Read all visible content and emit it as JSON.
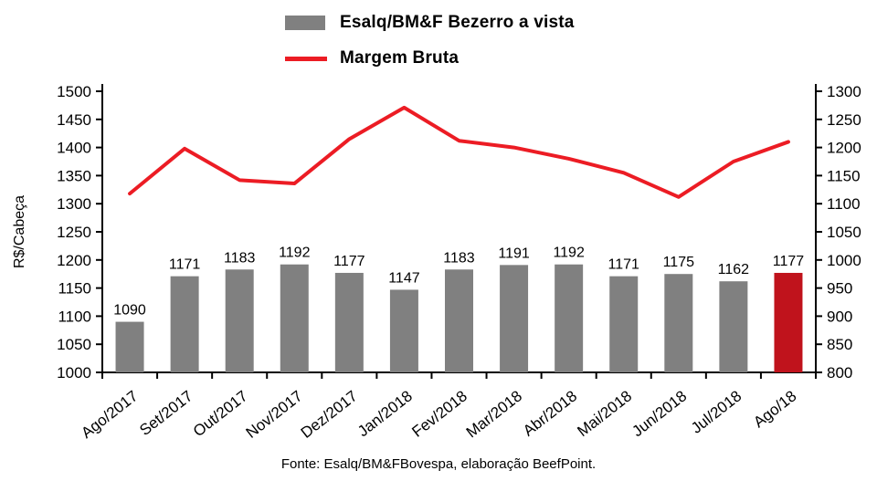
{
  "chart_data": {
    "type": "bar",
    "subtype": "combo-bar-line",
    "title": "",
    "categories": [
      "Ago/2017",
      "Set/2017",
      "Out/2017",
      "Nov/2017",
      "Dez/2017",
      "Jan/2018",
      "Fev/2018",
      "Mar/2018",
      "Abr/2018",
      "Mai/2018",
      "Jun/2018",
      "Jul/2018",
      "Ago/18"
    ],
    "series": [
      {
        "name": "Esalq/BM&F Bezerro a vista",
        "type": "bar",
        "axis": "left",
        "values": [
          1090,
          1171,
          1183,
          1192,
          1177,
          1147,
          1183,
          1191,
          1192,
          1171,
          1175,
          1162,
          1177
        ],
        "color": "#808080",
        "highlight_last_color": "#c0131c"
      },
      {
        "name": "Margem Bruta",
        "type": "line",
        "axis": "right",
        "values": [
          1118,
          1198,
          1142,
          1136,
          1215,
          1271,
          1212,
          1200,
          1180,
          1155,
          1112,
          1175,
          1210
        ],
        "color": "#ec1c24"
      }
    ],
    "left_axis": {
      "label": "R$/Cabeça",
      "min": 1000,
      "max": 1500,
      "step": 50
    },
    "right_axis": {
      "label": "",
      "min": 800,
      "max": 1300,
      "step": 50
    },
    "grid": false,
    "legend_position": "top",
    "footer": "Fonte: Esalq/BM&FBovespa, elaboração BeefPoint."
  },
  "colors": {
    "bar": "#808080",
    "bar_highlight": "#c0131c",
    "line": "#ec1c24",
    "axis": "#000000",
    "background": "#ffffff"
  }
}
